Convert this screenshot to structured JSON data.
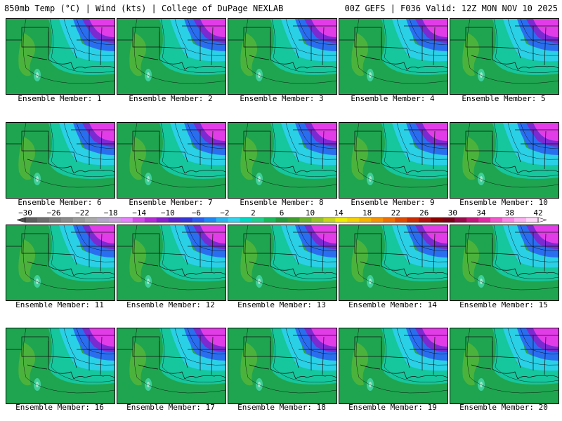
{
  "header": {
    "left": "850mb Temp (°C) | Wind (kts) | College of DuPage NEXLAB",
    "right": "00Z GEFS | F036 Valid: 12Z MON NOV 10 2025"
  },
  "panels": [
    {
      "label": "Ensemble Member: 1"
    },
    {
      "label": "Ensemble Member: 2"
    },
    {
      "label": "Ensemble Member: 3"
    },
    {
      "label": "Ensemble Member: 4"
    },
    {
      "label": "Ensemble Member: 5"
    },
    {
      "label": "Ensemble Member: 6"
    },
    {
      "label": "Ensemble Member: 7"
    },
    {
      "label": "Ensemble Member: 8"
    },
    {
      "label": "Ensemble Member: 9"
    },
    {
      "label": "Ensemble Member: 10"
    },
    {
      "label": "Ensemble Member: 11"
    },
    {
      "label": "Ensemble Member: 12"
    },
    {
      "label": "Ensemble Member: 13"
    },
    {
      "label": "Ensemble Member: 14"
    },
    {
      "label": "Ensemble Member: 15"
    },
    {
      "label": "Ensemble Member: 16"
    },
    {
      "label": "Ensemble Member: 17"
    },
    {
      "label": "Ensemble Member: 18"
    },
    {
      "label": "Ensemble Member: 19"
    },
    {
      "label": "Ensemble Member: 20"
    }
  ],
  "colorbar": {
    "ticks": [
      "−30",
      "−26",
      "−22",
      "−18",
      "−14",
      "−10",
      "−6",
      "−2",
      "2",
      "6",
      "10",
      "14",
      "18",
      "22",
      "26",
      "30",
      "34",
      "38",
      "42"
    ],
    "colors": [
      "#5f5f5f",
      "#6e6e6e",
      "#7d7d7d",
      "#8c8c8c",
      "#9b9b9b",
      "#aaaaaa",
      "#b3a8c9",
      "#c9a3dc",
      "#e880ff",
      "#d24be8",
      "#b529d6",
      "#8a1fcc",
      "#5a22c8",
      "#3535d8",
      "#2a5cf0",
      "#1e88f5",
      "#29b6f0",
      "#33d4ef",
      "#00d9c4",
      "#1fd08e",
      "#17bb5c",
      "#239b3c",
      "#3c9f2a",
      "#6bb32a",
      "#97c327",
      "#c6d61c",
      "#eeee00",
      "#f6d200",
      "#f8b400",
      "#f79400",
      "#f07000",
      "#e04a00",
      "#cc2a00",
      "#b01010",
      "#900000",
      "#7a0018",
      "#9a0a4a",
      "#c4187a",
      "#e22aa5",
      "#f456cd",
      "#fb86e6",
      "#fdb0f2",
      "#ffd8fa"
    ]
  }
}
